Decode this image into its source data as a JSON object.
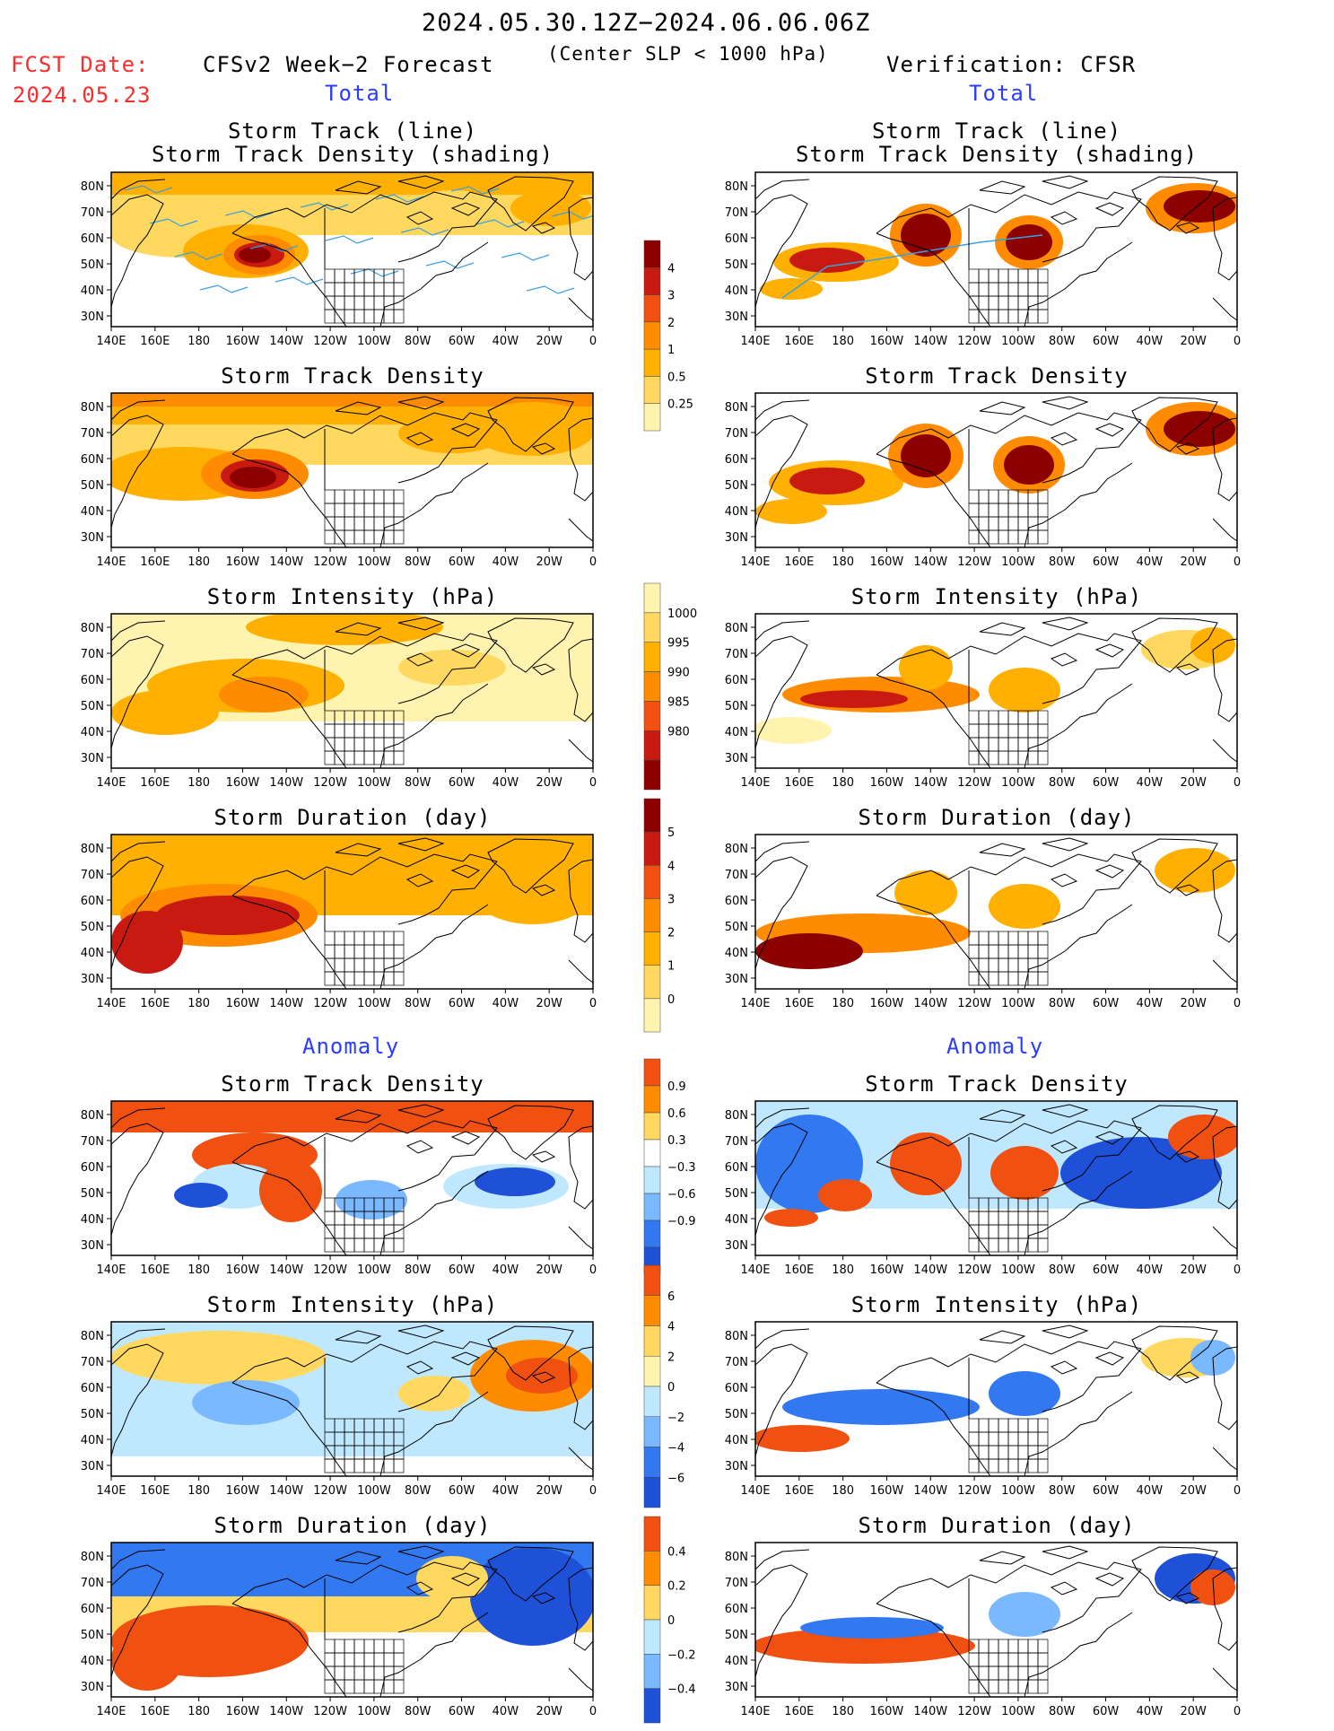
{
  "header": {
    "title": "2024.05.30.12Z−2024.06.06.06Z",
    "subtitle": "(Center SLP < 1000 hPa)",
    "fcst_label": "FCST Date:",
    "fcst_date": "2024.05.23",
    "left_heading": "CFSv2 Week−2 Forecast",
    "right_heading": "Verification: CFSR",
    "section_total": "Total",
    "section_anomaly": "Anomaly"
  },
  "map_ticks": {
    "lat": [
      "80N",
      "70N",
      "60N",
      "50N",
      "40N",
      "30N"
    ],
    "lon": [
      "140E",
      "160E",
      "180",
      "160W",
      "140W",
      "120W",
      "100W",
      "80W",
      "60W",
      "40W",
      "20W",
      "0"
    ]
  },
  "colors": {
    "yellow_light": "#fff3b0",
    "yellow": "#ffd860",
    "orange_light": "#ffb000",
    "orange": "#ff8c00",
    "red_orange": "#f05010",
    "red": "#c81a10",
    "dark_red": "#8c0000",
    "blue_light": "#bfe8ff",
    "blue_mid": "#7ab8ff",
    "blue": "#3278f0",
    "blue_dark": "#1e50d8",
    "track": "#3aa0e0"
  },
  "panels": [
    {
      "title_line1": "Storm Track (line)",
      "title_line2": "Storm Track Density (shading)"
    },
    {
      "title_line1": "Storm Track (line)",
      "title_line2": "Storm Track Density (shading)"
    },
    {
      "title_line1": "Storm Track Density",
      "title_line2": ""
    },
    {
      "title_line1": "Storm Track Density",
      "title_line2": ""
    },
    {
      "title_line1": "Storm Intensity (hPa)",
      "title_line2": ""
    },
    {
      "title_line1": "Storm Intensity (hPa)",
      "title_line2": ""
    },
    {
      "title_line1": "Storm Duration (day)",
      "title_line2": ""
    },
    {
      "title_line1": "Storm Duration (day)",
      "title_line2": ""
    },
    {
      "title_line1": "Storm Track Density",
      "title_line2": ""
    },
    {
      "title_line1": "Storm Track Density",
      "title_line2": ""
    },
    {
      "title_line1": "Storm Intensity (hPa)",
      "title_line2": ""
    },
    {
      "title_line1": "Storm Intensity (hPa)",
      "title_line2": ""
    },
    {
      "title_line1": "Storm Duration (day)",
      "title_line2": ""
    },
    {
      "title_line1": "Storm Duration (day)",
      "title_line2": ""
    }
  ],
  "colorbars": [
    {
      "name": "density",
      "labels": [
        "4",
        "3",
        "2",
        "1",
        "0.5",
        "0.25"
      ],
      "colors": [
        "#8c0000",
        "#c81a10",
        "#f05010",
        "#ff8c00",
        "#ffb000",
        "#ffd860",
        "#fff3b0"
      ]
    },
    {
      "name": "intensity",
      "labels": [
        "1000",
        "995",
        "990",
        "985",
        "980"
      ],
      "colors": [
        "#fff3b0",
        "#ffd860",
        "#ffb000",
        "#ff8c00",
        "#f05010",
        "#c81a10",
        "#8c0000"
      ]
    },
    {
      "name": "duration",
      "labels": [
        "5",
        "4",
        "3",
        "2",
        "1",
        "0"
      ],
      "colors": [
        "#8c0000",
        "#c81a10",
        "#f05010",
        "#ff8c00",
        "#ffb000",
        "#ffd860",
        "#fff3b0"
      ]
    },
    {
      "name": "density_anom",
      "labels": [
        "0.9",
        "0.6",
        "0.3",
        "−0.3",
        "−0.6",
        "−0.9"
      ],
      "colors": [
        "#f05010",
        "#ff8c00",
        "#ffd860",
        "#ffffff",
        "#bfe8ff",
        "#7ab8ff",
        "#3278f0",
        "#1e50d8"
      ]
    },
    {
      "name": "intensity_anom",
      "labels": [
        "6",
        "4",
        "2",
        "0",
        "−2",
        "−4",
        "−6"
      ],
      "colors": [
        "#f05010",
        "#ff8c00",
        "#ffd860",
        "#fff3b0",
        "#bfe8ff",
        "#7ab8ff",
        "#3278f0",
        "#1e50d8"
      ]
    },
    {
      "name": "duration_anom",
      "labels": [
        "0.4",
        "0.2",
        "0",
        "−0.2",
        "−0.4"
      ],
      "colors": [
        "#f05010",
        "#ff8c00",
        "#ffd860",
        "#bfe8ff",
        "#7ab8ff",
        "#1e50d8"
      ]
    }
  ]
}
